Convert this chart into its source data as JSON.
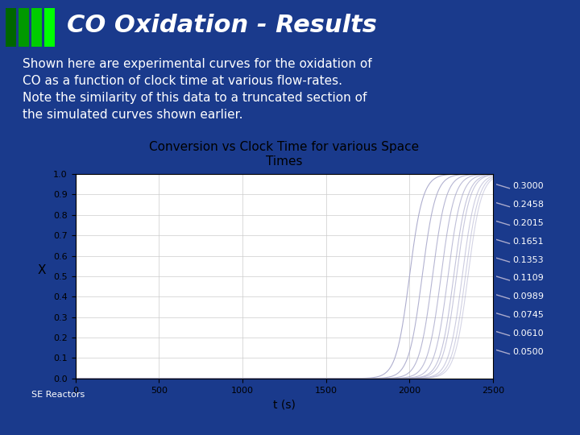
{
  "title": "CO Oxidation - Results",
  "subtitle_lines": [
    "Shown here are experimental curves for the oxidation of",
    "CO as a function of clock time at various flow-rates.",
    "Note the similarity of this data to a truncated section of",
    "the simulated curves shown earlier."
  ],
  "chart_title": "Conversion vs Clock Time for various Space\nTimes",
  "xlabel": "t (s)",
  "ylabel": "X",
  "xlim": [
    0,
    2500
  ],
  "ylim": [
    0,
    1.0
  ],
  "xticks": [
    0,
    500,
    1000,
    1500,
    2000,
    2500
  ],
  "yticks": [
    0.0,
    0.1,
    0.2,
    0.3,
    0.4,
    0.5,
    0.6,
    0.7,
    0.8,
    0.9,
    1.0
  ],
  "space_times": [
    0.05,
    0.061,
    0.0745,
    0.0989,
    0.1109,
    0.1353,
    0.1651,
    0.2015,
    0.2458,
    0.3
  ],
  "bg_color": "#1a3a8c",
  "title_color": "#ffffff",
  "text_color": "#ffffff",
  "chart_bg": "#ffffff",
  "curve_color": "#aaaacc",
  "bottom_bar_color": "#00cc00",
  "logo_color": "#cccccc",
  "footer_text": "SE Reactors",
  "green_box_colors": [
    "#006600",
    "#009900",
    "#00cc00",
    "#00ff00"
  ]
}
